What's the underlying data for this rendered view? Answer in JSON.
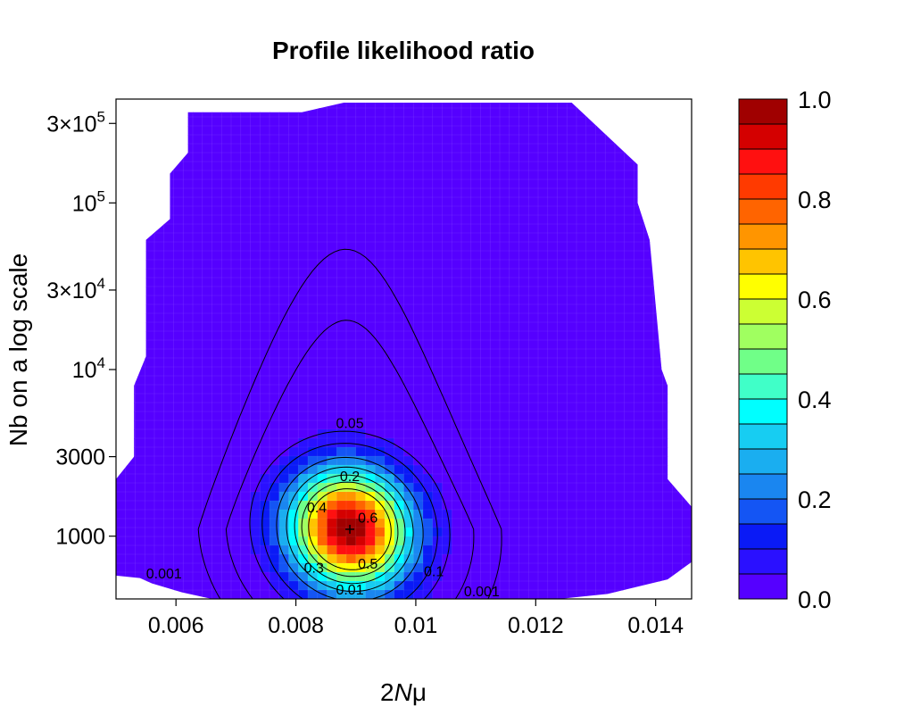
{
  "chart_data": {
    "type": "heatmap",
    "title": "Profile likelihood ratio",
    "xlabel_parts": [
      "2",
      "N",
      "μ"
    ],
    "ylabel": "Nb on a log scale",
    "scale_y": "log",
    "xlim": [
      0.005,
      0.0146
    ],
    "ylim": [
      420,
      420000
    ],
    "x_ticks": [
      {
        "value": 0.006,
        "label": "0.006"
      },
      {
        "value": 0.008,
        "label": "0.008"
      },
      {
        "value": 0.01,
        "label": "0.01"
      },
      {
        "value": 0.012,
        "label": "0.012"
      },
      {
        "value": 0.014,
        "label": "0.014"
      }
    ],
    "y_ticks": [
      {
        "value": 1000,
        "base": "1000",
        "exp": ""
      },
      {
        "value": 3000,
        "base": "3000",
        "exp": ""
      },
      {
        "value": 10000,
        "base": "10",
        "exp": "4"
      },
      {
        "value": 30000,
        "base": "3×10",
        "exp": "4"
      },
      {
        "value": 100000,
        "base": "10",
        "exp": "5"
      },
      {
        "value": 300000,
        "base": "3×10",
        "exp": "5"
      }
    ],
    "mle": {
      "x": 0.0089,
      "y": 1100
    },
    "contour_levels": [
      0.001,
      0.01,
      0.05,
      0.1,
      0.2,
      0.3,
      0.4,
      0.5,
      0.6
    ],
    "contour_labels": [
      {
        "text": "0.05",
        "x": 0.0089,
        "y": 4800
      },
      {
        "text": "0.2",
        "x": 0.0089,
        "y": 2300
      },
      {
        "text": "0.4",
        "x": 0.00835,
        "y": 1500
      },
      {
        "text": "0.6",
        "x": 0.0092,
        "y": 1300
      },
      {
        "text": "0.3",
        "x": 0.0083,
        "y": 650
      },
      {
        "text": "0.5",
        "x": 0.0092,
        "y": 690
      },
      {
        "text": "0.1",
        "x": 0.0103,
        "y": 620
      },
      {
        "text": "0.001",
        "x": 0.0058,
        "y": 600
      },
      {
        "text": "0.01",
        "x": 0.0089,
        "y": 480
      },
      {
        "text": "0.001",
        "x": 0.0111,
        "y": 470
      }
    ],
    "colorbar": {
      "ticks": [
        "0.0",
        "0.2",
        "0.4",
        "0.6",
        "0.8",
        "1.0"
      ],
      "colors": [
        "#5500ff",
        "#2a10ff",
        "#0a1af6",
        "#1455f4",
        "#1a86f0",
        "#1aaef0",
        "#17cdf2",
        "#00ffff",
        "#40ffc8",
        "#70ff88",
        "#a0ff60",
        "#ccff33",
        "#ffff00",
        "#ffc400",
        "#ff9500",
        "#ff6400",
        "#ff3a00",
        "#ff1010",
        "#d40000",
        "#a00000"
      ]
    }
  }
}
